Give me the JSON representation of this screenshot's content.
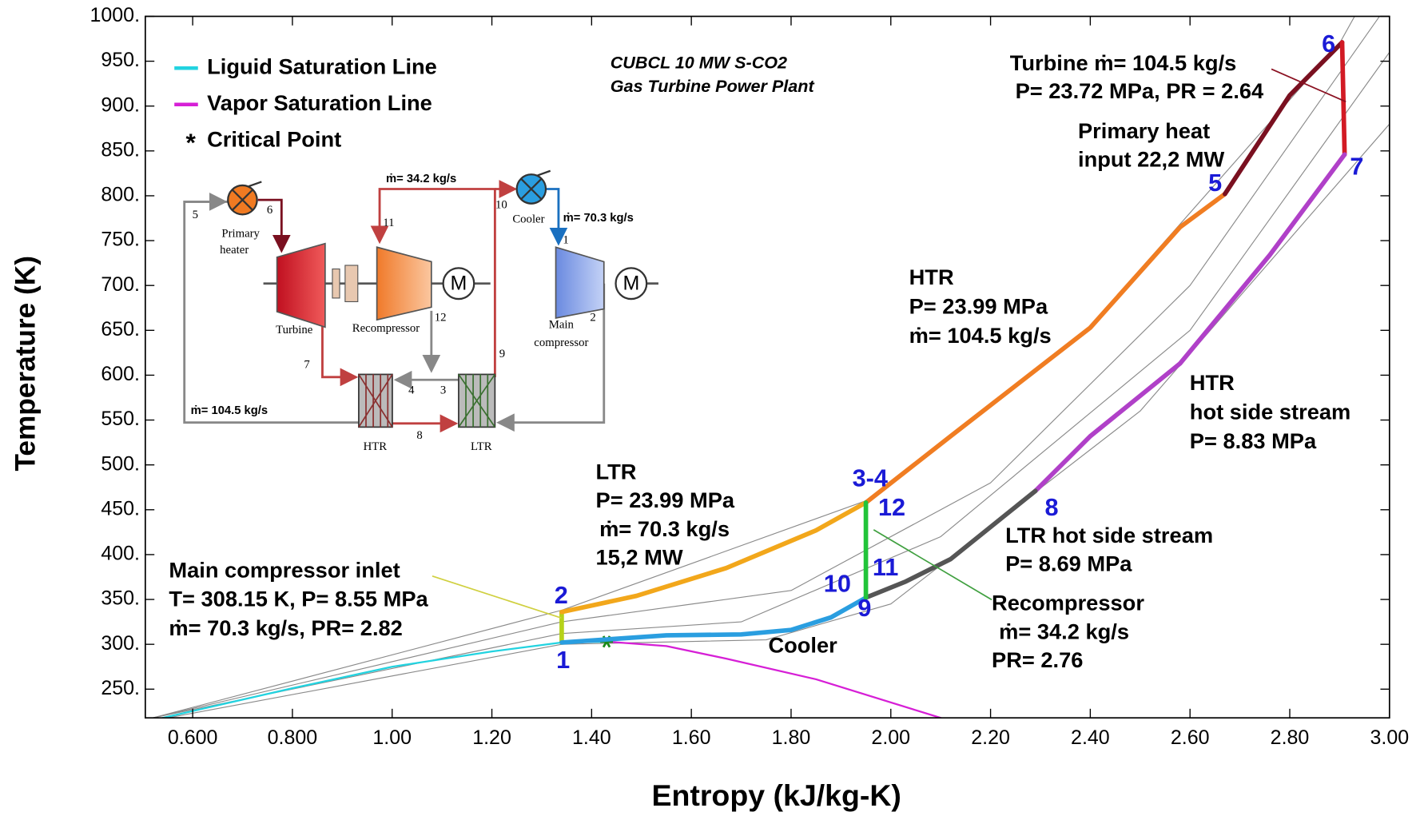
{
  "chart_data": {
    "type": "line",
    "title": [
      "CUBCL 10 MW S-CO2",
      "Gas Turbine Power Plant"
    ],
    "x_label": "Entropy (kJ/kg-K)",
    "y_label": "Temperature (K)",
    "xlim": [
      0.505,
      3.0
    ],
    "ylim": [
      218,
      1000
    ],
    "xticks": [
      {
        "value": 0.6,
        "label": "0.600"
      },
      {
        "value": 0.8,
        "label": "0.800"
      },
      {
        "value": 1.0,
        "label": "1.00"
      },
      {
        "value": 1.2,
        "label": "1.20"
      },
      {
        "value": 1.4,
        "label": "1.40"
      },
      {
        "value": 1.6,
        "label": "1.60"
      },
      {
        "value": 1.8,
        "label": "1.80"
      },
      {
        "value": 2.0,
        "label": "2.00"
      },
      {
        "value": 2.2,
        "label": "2.20"
      },
      {
        "value": 2.4,
        "label": "2.40"
      },
      {
        "value": 2.6,
        "label": "2.60"
      },
      {
        "value": 2.8,
        "label": "2.80"
      },
      {
        "value": 3.0,
        "label": "3.00"
      }
    ],
    "yticks": [
      {
        "value": 250,
        "label": "250."
      },
      {
        "value": 300,
        "label": "300."
      },
      {
        "value": 350,
        "label": "350."
      },
      {
        "value": 400,
        "label": "400."
      },
      {
        "value": 450,
        "label": "450."
      },
      {
        "value": 500,
        "label": "500."
      },
      {
        "value": 550,
        "label": "550."
      },
      {
        "value": 600,
        "label": "600."
      },
      {
        "value": 650,
        "label": "650."
      },
      {
        "value": 700,
        "label": "700."
      },
      {
        "value": 750,
        "label": "750."
      },
      {
        "value": 800,
        "label": "800."
      },
      {
        "value": 850,
        "label": "850."
      },
      {
        "value": 900,
        "label": "900."
      },
      {
        "value": 950,
        "label": "950."
      },
      {
        "value": 1000,
        "label": "1000."
      }
    ],
    "series": [
      {
        "name": "Liguid Saturation Line",
        "color": "#22d3e0",
        "x": [
          0.54,
          0.8,
          1.0,
          1.2,
          1.34,
          1.43
        ],
        "y": [
          218,
          251,
          275,
          292,
          302,
          303
        ]
      },
      {
        "name": "Vapor Saturation Line",
        "color": "#d61fd6",
        "x": [
          1.43,
          1.55,
          1.67,
          1.85,
          2.1
        ],
        "y": [
          303,
          298,
          284,
          261,
          218
        ]
      },
      {
        "name": "Critical Point",
        "type": "scatter",
        "color": "#1a8a1a",
        "x": [
          1.43
        ],
        "y": [
          303
        ]
      }
    ],
    "isobars": [
      {
        "color": "#8a8a8a",
        "x": [
          0.52,
          1.34,
          1.95,
          2.4,
          2.9,
          2.93
        ],
        "y": [
          218,
          338,
          460,
          655,
          970,
          1000
        ]
      },
      {
        "color": "#8a8a8a",
        "x": [
          0.52,
          1.34,
          1.8,
          2.2,
          2.6,
          2.98
        ],
        "y": [
          218,
          325,
          360,
          480,
          700,
          1000
        ]
      },
      {
        "color": "#8a8a8a",
        "x": [
          0.52,
          1.34,
          1.7,
          2.1,
          2.6,
          3.0
        ],
        "y": [
          218,
          312,
          325,
          420,
          650,
          960
        ]
      },
      {
        "color": "#8a8a8a",
        "x": [
          0.55,
          1.34,
          1.75,
          2.0,
          2.5,
          3.0
        ],
        "y": [
          218,
          300,
          305,
          345,
          560,
          880
        ]
      }
    ],
    "processes": [
      {
        "color": "#b5d21a",
        "x": [
          1.34,
          1.34
        ],
        "y": [
          302,
          336
        ]
      },
      {
        "color": "#f2a71b",
        "x": [
          1.34,
          1.49,
          1.67,
          1.85,
          1.95
        ],
        "y": [
          336,
          354,
          385,
          427,
          458
        ]
      },
      {
        "color": "#f07d22",
        "x": [
          1.95,
          2.12,
          2.4,
          2.58,
          2.67
        ],
        "y": [
          458,
          532,
          653,
          765,
          802
        ]
      },
      {
        "color": "#7a1020",
        "x": [
          2.67,
          2.8,
          2.905
        ],
        "y": [
          802,
          912,
          971
        ]
      },
      {
        "color": "#d21a24",
        "x": [
          2.905,
          2.91
        ],
        "y": [
          971,
          846
        ]
      },
      {
        "color": "#b040c8",
        "x": [
          2.91,
          2.76,
          2.58,
          2.4,
          2.29
        ],
        "y": [
          846,
          734,
          613,
          532,
          471
        ]
      },
      {
        "color": "#555555",
        "x": [
          2.29,
          2.12,
          2.03,
          1.95
        ],
        "y": [
          471,
          395,
          370,
          352
        ]
      },
      {
        "color": "#2a9ee0",
        "x": [
          1.95,
          1.88,
          1.8,
          1.7,
          1.55,
          1.34
        ],
        "y": [
          352,
          330,
          316,
          311,
          310,
          302
        ]
      },
      {
        "color": "#22c43a",
        "x": [
          1.95,
          1.95
        ],
        "y": [
          352,
          458
        ]
      }
    ],
    "state_labels": [
      "1",
      "2",
      "3-4",
      "5",
      "6",
      "7",
      "8",
      "9",
      "10",
      "11",
      "12"
    ],
    "annotations": [
      {
        "lines": [
          "Turbine  ṁ= 104.5 kg/s",
          "P= 23.72 MPa, PR = 2.64"
        ]
      },
      {
        "lines": [
          "Primary heat",
          "input 22,2 MW"
        ]
      },
      {
        "lines": [
          "HTR",
          "P= 23.99 MPa",
          "ṁ= 104.5 kg/s"
        ]
      },
      {
        "lines": [
          "HTR",
          "hot side stream",
          "P= 8.83 MPa"
        ]
      },
      {
        "lines": [
          "LTR hot side stream",
          "P= 8.69 MPa"
        ]
      },
      {
        "lines": [
          "Recompressor",
          "ṁ= 34.2 kg/s",
          "PR= 2.76"
        ]
      },
      {
        "lines": [
          "LTR",
          "P= 23.99 MPa",
          "ṁ= 70.3 kg/s",
          "15,2 MW"
        ]
      },
      {
        "lines": [
          "Main compressor inlet",
          "T= 308.15 K, P= 8.55 MPa",
          "ṁ= 70.3 kg/s, PR= 2.82"
        ]
      },
      {
        "lines": [
          "Cooler"
        ]
      }
    ]
  },
  "diagram": {
    "component_labels": [
      "Primary",
      "heater",
      "Turbine",
      "Recompressor",
      "Main",
      "compressor",
      "Cooler",
      "HTR",
      "LTR"
    ],
    "flow_labels": [
      "ṁ= 34.2 kg/s",
      "ṁ= 70.3 kg/s",
      "ṁ= 104.5 kg/s"
    ],
    "station_numbers": [
      "5",
      "6",
      "11",
      "10",
      "1",
      "12",
      "2",
      "9",
      "7",
      "4",
      "3",
      "8"
    ],
    "motor_label": "M"
  }
}
